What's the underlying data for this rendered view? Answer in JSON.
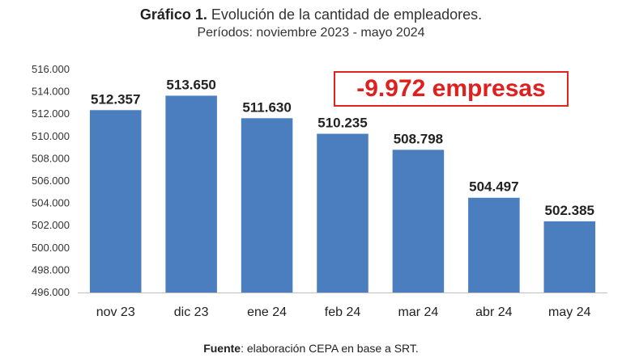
{
  "header": {
    "title_bold": "Gráfico 1.",
    "title_rest": " Evolución de la cantidad de empleadores.",
    "subtitle": "Períodos: noviembre 2023 - mayo 2024"
  },
  "annotation": {
    "text": "-9.972 empresas",
    "color": "#e01f1f"
  },
  "source": {
    "label": "Fuente",
    "text": ": elaboración CEPA en base a SRT."
  },
  "chart_data": {
    "type": "bar",
    "categories": [
      "nov 23",
      "dic 23",
      "ene 24",
      "feb 24",
      "mar 24",
      "abr 24",
      "may 24"
    ],
    "values": [
      512357,
      513650,
      511630,
      510235,
      508798,
      504497,
      502385
    ],
    "data_labels": [
      "512.357",
      "513.650",
      "511.630",
      "510.235",
      "508.798",
      "504.497",
      "502.385"
    ],
    "ylim": [
      496000,
      516000
    ],
    "yticks": [
      496000,
      498000,
      500000,
      502000,
      504000,
      506000,
      508000,
      510000,
      512000,
      514000,
      516000
    ],
    "ytick_labels": [
      "496.000",
      "498.000",
      "500.000",
      "502.000",
      "504.000",
      "506.000",
      "508.000",
      "510.000",
      "512.000",
      "514.000",
      "516.000"
    ],
    "grid": false,
    "bar_color": "#4a7ebf",
    "title": "Evolución de la cantidad de empleadores.",
    "xlabel": "",
    "ylabel": ""
  }
}
